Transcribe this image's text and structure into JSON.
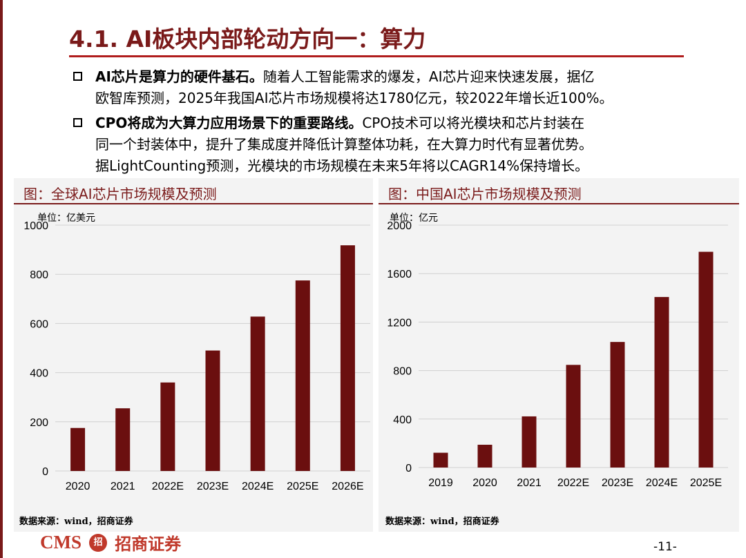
{
  "slide": {
    "title": "4.1. AI板块内部轮动方向一：算力",
    "bullets": [
      {
        "lead": "AI芯片是算力的硬件基石。",
        "lines": [
          "随着人工智能需求的爆发，AI芯片迎来快速发展，据亿",
          "欧智库预测，2025年我国AI芯片市场规模将达1780亿元，较2022年增长近100%。"
        ]
      },
      {
        "lead": "CPO将成为大算力应用场景下的重要路线。",
        "lines": [
          "CPO技术可以将光模块和芯片封装在",
          "同一个封装体中，提升了集成度并降低计算整体功耗，在大算力时代有显著优势。",
          "据LightCounting预测，光模块的市场规模在未来5年将以CAGR14%保持增长。"
        ]
      }
    ],
    "page_number": "-11-",
    "logo": {
      "brand": "CMS",
      "emblem": "招",
      "name": "招商证券"
    }
  },
  "panels": {
    "left": {
      "title": "图：全球AI芯片市场规模及预测",
      "unit": "单位：亿美元",
      "source": "数据来源：wind，招商证券"
    },
    "right": {
      "title": "图：中国AI芯片市场规模及预测",
      "unit": "单位：亿元",
      "source": "数据来源：wind，招商证券"
    }
  },
  "chart_data": [
    {
      "type": "bar",
      "title": "图：全球AI芯片市场规模及预测",
      "ylabel": "单位：亿美元",
      "categories": [
        "2020",
        "2021",
        "2022E",
        "2023E",
        "2024E",
        "2025E",
        "2026E"
      ],
      "values": [
        175,
        255,
        360,
        490,
        628,
        775,
        918
      ],
      "ylim": [
        0,
        1000
      ],
      "yticks": [
        "0",
        "200",
        "400",
        "600",
        "800",
        "1000"
      ],
      "grid": true,
      "bar_color": "#6b0f0f"
    },
    {
      "type": "bar",
      "title": "图：中国AI芯片市场规模及预测",
      "ylabel": "单位：亿元",
      "categories": [
        "2019",
        "2020",
        "2021",
        "2022E",
        "2023E",
        "2024E",
        "2025E"
      ],
      "values": [
        122,
        188,
        422,
        847,
        1036,
        1407,
        1780
      ],
      "ylim": [
        0,
        2000
      ],
      "yticks": [
        "0",
        "400",
        "800",
        "1200",
        "1600",
        "2000"
      ],
      "grid": true,
      "bar_color": "#6b0f0f"
    }
  ]
}
